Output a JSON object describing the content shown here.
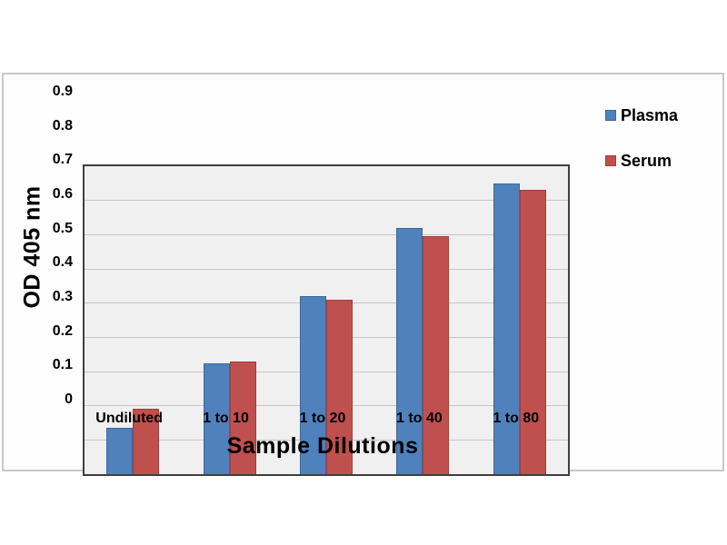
{
  "chart_data": {
    "type": "bar",
    "title": "",
    "categories": [
      "Undiluted",
      "1 to 10",
      "1 to 20",
      "1 to 40",
      "1 to 80"
    ],
    "series": [
      {
        "name": "Plasma",
        "color": "#4F81BD",
        "border": "#3E679B",
        "values": [
          0.135,
          0.325,
          0.52,
          0.72,
          0.85
        ]
      },
      {
        "name": "Serum",
        "color": "#C0504D",
        "border": "#9E403E",
        "values": [
          0.19,
          0.33,
          0.51,
          0.695,
          0.83
        ]
      }
    ],
    "xlabel": "Sample Dilutions",
    "ylabel": "OD 405 nm",
    "ylim": [
      0,
      0.9
    ],
    "yticks": [
      "0.9",
      "0.8",
      "0.7",
      "0.6",
      "0.5",
      "0.4",
      "0.3",
      "0.2",
      "0.1",
      "0"
    ],
    "grid": true,
    "legend_position": "right",
    "plot_background": "#f0f0f0",
    "gridline_color": "#c6c6c6"
  }
}
